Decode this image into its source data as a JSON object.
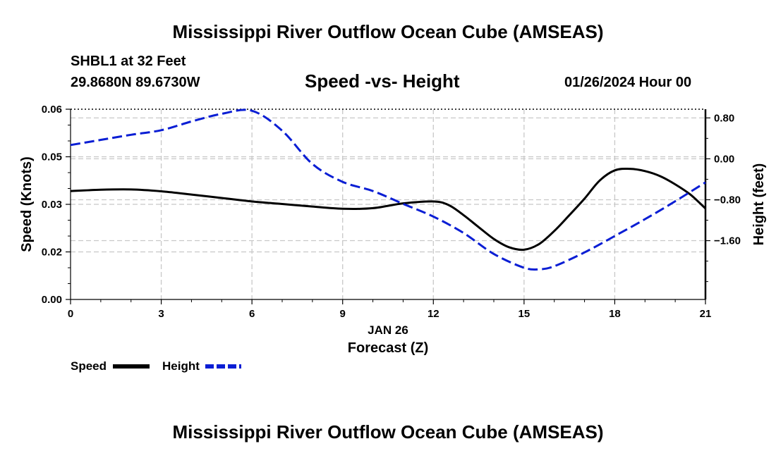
{
  "header": {
    "title": "Mississippi River Outflow Ocean Cube (AMSEAS)",
    "station": "SHBL1 at 32 Feet",
    "coordinates": "29.8680N  89.6730W",
    "subtitle": "Speed -vs- Height",
    "datetime": "01/26/2024 Hour 00"
  },
  "footer": {
    "title": "Mississippi River Outflow Ocean Cube (AMSEAS)"
  },
  "chart_data": {
    "type": "line",
    "title": "Speed -vs- Height",
    "xlabel_date": "JAN 26",
    "xlabel": "Forecast (Z)",
    "ylabel_left": "Speed (Knots)",
    "ylabel_right": "Height (feet)",
    "xlim": [
      0,
      21
    ],
    "ylim_left": [
      0,
      0.06
    ],
    "ylim_right": [
      -2.75,
      0.97
    ],
    "x_ticks": [
      "0",
      "3",
      "6",
      "9",
      "12",
      "15",
      "18",
      "21"
    ],
    "x_tick_values": [
      0,
      3,
      6,
      9,
      12,
      15,
      18,
      21
    ],
    "y_left_ticks": [
      "0.00",
      "0.02",
      "0.03",
      "0.05",
      "0.06"
    ],
    "y_left_tick_values": [
      0.0,
      0.015,
      0.03,
      0.045,
      0.06
    ],
    "y_right_ticks": [
      "0.80",
      "0.00",
      "−0.80",
      "−1.60"
    ],
    "y_right_tick_values": [
      0.8,
      0.0,
      -0.8,
      -1.6
    ],
    "grid": true,
    "legend": [
      "Speed",
      "Height"
    ],
    "series": [
      {
        "name": "Speed",
        "axis": "left",
        "color": "#000000",
        "dash": "solid",
        "x": [
          0,
          1,
          2,
          3,
          4,
          5,
          6,
          7,
          8,
          9,
          10,
          11,
          12,
          12.5,
          13,
          13.5,
          14,
          14.5,
          15,
          15.5,
          16,
          16.5,
          17,
          17.5,
          18,
          18.5,
          19,
          19.5,
          20,
          20.5,
          21
        ],
        "values": [
          0.0342,
          0.0346,
          0.0347,
          0.0341,
          0.0331,
          0.032,
          0.0309,
          0.0301,
          0.0293,
          0.0286,
          0.0288,
          0.0303,
          0.0309,
          0.0298,
          0.0266,
          0.0228,
          0.0191,
          0.0165,
          0.0157,
          0.0175,
          0.0216,
          0.0266,
          0.0318,
          0.0375,
          0.0407,
          0.0412,
          0.0405,
          0.0389,
          0.0363,
          0.0331,
          0.0287
        ]
      },
      {
        "name": "Height",
        "axis": "right",
        "color": "#0a1ed4",
        "dash": "dashed",
        "x": [
          0,
          1,
          2,
          3,
          4,
          5,
          6,
          7,
          8,
          9,
          10,
          11,
          12,
          13,
          14,
          15,
          15.5,
          16,
          17,
          18,
          19,
          20,
          21
        ],
        "values": [
          0.27,
          0.37,
          0.47,
          0.56,
          0.73,
          0.88,
          0.94,
          0.55,
          -0.1,
          -0.45,
          -0.63,
          -0.88,
          -1.13,
          -1.45,
          -1.86,
          -2.13,
          -2.16,
          -2.1,
          -1.83,
          -1.51,
          -1.18,
          -0.83,
          -0.46
        ]
      }
    ]
  }
}
